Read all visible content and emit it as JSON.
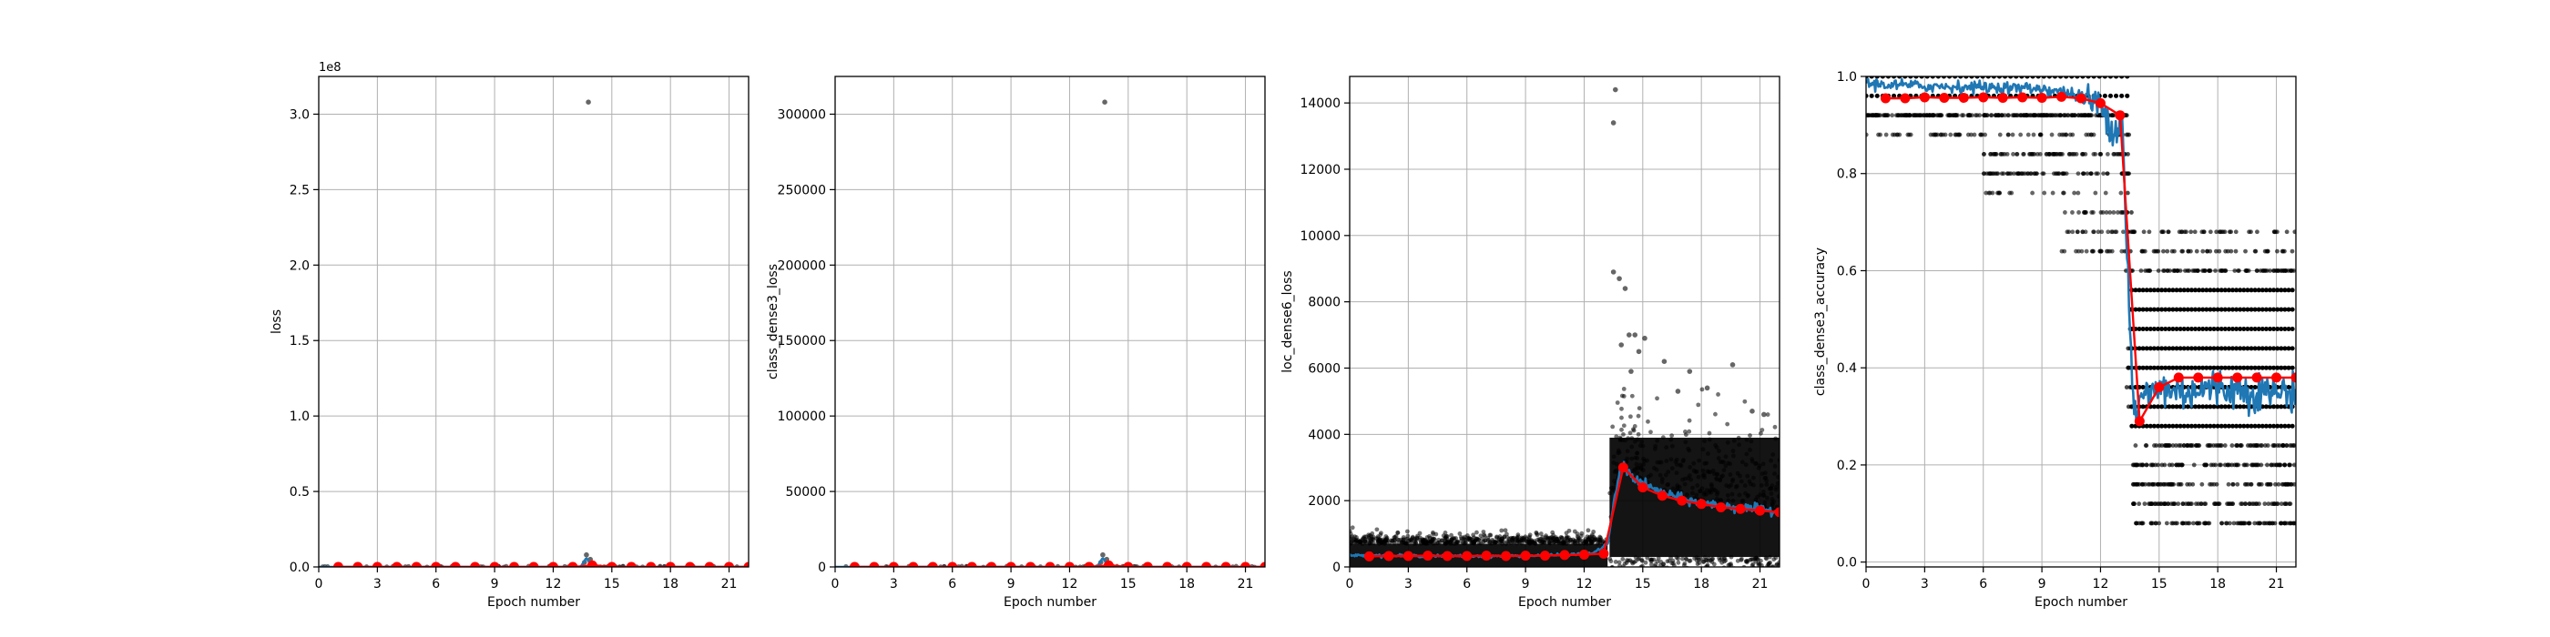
{
  "figure": {
    "background": "#ffffff",
    "colors": {
      "raw": "#000000",
      "smooth": "#1f77b4",
      "epoch_mean": "#ff0000",
      "grid": "#b0b0b0"
    }
  },
  "chart_data": [
    {
      "type": "scatter",
      "ylabel": "loss",
      "xlabel": "Epoch number",
      "offset_label": "1e8",
      "xlim": [
        0,
        22
      ],
      "ylim": [
        0,
        3.25
      ],
      "xticks": [
        0,
        3,
        6,
        9,
        12,
        15,
        18,
        21
      ],
      "yticks": [
        0.0,
        0.5,
        1.0,
        1.5,
        2.0,
        2.5,
        3.0
      ],
      "ytick_labels": [
        "0.0",
        "0.5",
        "1.0",
        "1.5",
        "2.0",
        "2.5",
        "3.0"
      ],
      "grid": true,
      "outliers": [
        [
          13.8,
          3.08
        ],
        [
          13.7,
          0.08
        ],
        [
          13.9,
          0.05
        ],
        [
          13.6,
          0.03
        ]
      ],
      "epoch_means": [
        [
          1,
          0
        ],
        [
          2,
          0
        ],
        [
          3,
          0
        ],
        [
          4,
          0
        ],
        [
          5,
          0
        ],
        [
          6,
          0
        ],
        [
          7,
          0
        ],
        [
          8,
          0
        ],
        [
          9,
          0
        ],
        [
          10,
          0
        ],
        [
          11,
          0
        ],
        [
          12,
          0
        ],
        [
          13,
          0
        ],
        [
          14,
          0.01
        ],
        [
          15,
          0
        ],
        [
          16,
          0
        ],
        [
          17,
          0
        ],
        [
          18,
          0
        ],
        [
          19,
          0
        ],
        [
          20,
          0
        ],
        [
          21,
          0
        ],
        [
          22,
          0
        ]
      ],
      "smooth": [
        [
          0,
          0
        ],
        [
          13.4,
          0
        ],
        [
          13.7,
          0.06
        ],
        [
          13.9,
          0.02
        ],
        [
          14.2,
          0
        ],
        [
          22,
          0
        ]
      ],
      "band": {
        "x0": 0,
        "x1": 22,
        "lo": 0,
        "hi": 0.004
      }
    },
    {
      "type": "scatter",
      "ylabel": "class_dense3_loss",
      "xlabel": "Epoch number",
      "xlim": [
        0,
        22
      ],
      "ylim": [
        0,
        325000
      ],
      "xticks": [
        0,
        3,
        6,
        9,
        12,
        15,
        18,
        21
      ],
      "yticks": [
        0,
        50000,
        100000,
        150000,
        200000,
        250000,
        300000
      ],
      "ytick_labels": [
        "0",
        "50000",
        "100000",
        "150000",
        "200000",
        "250000",
        "300000"
      ],
      "grid": true,
      "outliers": [
        [
          13.8,
          308000
        ],
        [
          13.7,
          8000
        ],
        [
          13.9,
          5000
        ],
        [
          13.6,
          3000
        ]
      ],
      "epoch_means": [
        [
          1,
          0
        ],
        [
          2,
          0
        ],
        [
          3,
          0
        ],
        [
          4,
          0
        ],
        [
          5,
          0
        ],
        [
          6,
          0
        ],
        [
          7,
          0
        ],
        [
          8,
          0
        ],
        [
          9,
          0
        ],
        [
          10,
          0
        ],
        [
          11,
          0
        ],
        [
          12,
          0
        ],
        [
          13,
          0
        ],
        [
          14,
          1000
        ],
        [
          15,
          0
        ],
        [
          16,
          0
        ],
        [
          17,
          0
        ],
        [
          18,
          0
        ],
        [
          19,
          0
        ],
        [
          20,
          0
        ],
        [
          21,
          0
        ],
        [
          22,
          0
        ]
      ],
      "smooth": [
        [
          0,
          0
        ],
        [
          13.4,
          0
        ],
        [
          13.7,
          6000
        ],
        [
          13.9,
          2000
        ],
        [
          14.2,
          0
        ],
        [
          22,
          0
        ]
      ],
      "band": {
        "x0": 0,
        "x1": 22,
        "lo": 0,
        "hi": 400
      }
    },
    {
      "type": "scatter",
      "ylabel": "loc_dense6_loss",
      "xlabel": "Epoch number",
      "xlim": [
        0,
        22
      ],
      "ylim": [
        0,
        14800
      ],
      "xticks": [
        0,
        3,
        6,
        9,
        12,
        15,
        18,
        21
      ],
      "yticks": [
        0,
        2000,
        4000,
        6000,
        8000,
        10000,
        12000,
        14000
      ],
      "ytick_labels": [
        "0",
        "2000",
        "4000",
        "6000",
        "8000",
        "10000",
        "12000",
        "14000"
      ],
      "grid": true,
      "outliers": [
        [
          13.6,
          14400
        ],
        [
          13.5,
          13400
        ],
        [
          13.5,
          8900
        ],
        [
          13.8,
          8700
        ],
        [
          14.1,
          8400
        ],
        [
          14.3,
          7000
        ],
        [
          14.6,
          7000
        ],
        [
          15.1,
          6900
        ],
        [
          13.9,
          6700
        ],
        [
          14.8,
          6500
        ],
        [
          16.1,
          6200
        ],
        [
          19.6,
          6100
        ],
        [
          17.4,
          5900
        ],
        [
          18.3,
          5400
        ],
        [
          21.2,
          4600
        ],
        [
          20.6,
          4700
        ],
        [
          16.8,
          5300
        ],
        [
          14.4,
          5900
        ]
      ],
      "epoch_means": [
        [
          1,
          320
        ],
        [
          2,
          330
        ],
        [
          3,
          330
        ],
        [
          4,
          340
        ],
        [
          5,
          330
        ],
        [
          6,
          330
        ],
        [
          7,
          340
        ],
        [
          8,
          330
        ],
        [
          9,
          340
        ],
        [
          10,
          340
        ],
        [
          11,
          360
        ],
        [
          12,
          370
        ],
        [
          13,
          400
        ],
        [
          14,
          3000
        ],
        [
          15,
          2400
        ],
        [
          16,
          2150
        ],
        [
          17,
          2000
        ],
        [
          18,
          1900
        ],
        [
          19,
          1800
        ],
        [
          20,
          1750
        ],
        [
          21,
          1700
        ],
        [
          22,
          1650
        ]
      ],
      "smooth": [
        [
          0,
          350
        ],
        [
          4,
          330
        ],
        [
          8,
          330
        ],
        [
          11,
          360
        ],
        [
          12.5,
          420
        ],
        [
          13.2,
          700
        ],
        [
          13.6,
          2200
        ],
        [
          13.9,
          3100
        ],
        [
          14.5,
          2700
        ],
        [
          15.5,
          2350
        ],
        [
          17,
          2050
        ],
        [
          18.5,
          1880
        ],
        [
          20,
          1780
        ],
        [
          22,
          1680
        ]
      ],
      "band": {
        "x0": 0,
        "x1": 13.2,
        "lo": 0,
        "hi": 700
      },
      "band2": {
        "x0": 13.3,
        "x1": 22,
        "lo": 300,
        "hi": 3900
      }
    },
    {
      "type": "scatter",
      "ylabel": "class_dense3_accuracy",
      "xlabel": "Epoch number",
      "xlim": [
        0,
        22
      ],
      "ylim": [
        -0.01,
        1.0
      ],
      "xticks": [
        0,
        3,
        6,
        9,
        12,
        15,
        18,
        21
      ],
      "yticks": [
        0.0,
        0.2,
        0.4,
        0.6,
        0.8,
        1.0
      ],
      "ytick_labels": [
        "0.0",
        "0.2",
        "0.4",
        "0.6",
        "0.8",
        "1.0"
      ],
      "grid": true,
      "epoch_means": [
        [
          1,
          0.955
        ],
        [
          2,
          0.955
        ],
        [
          3,
          0.957
        ],
        [
          4,
          0.956
        ],
        [
          5,
          0.956
        ],
        [
          6,
          0.957
        ],
        [
          7,
          0.956
        ],
        [
          8,
          0.957
        ],
        [
          9,
          0.956
        ],
        [
          10,
          0.958
        ],
        [
          11,
          0.955
        ],
        [
          12,
          0.945
        ],
        [
          13,
          0.92
        ],
        [
          14,
          0.29
        ],
        [
          15,
          0.36
        ],
        [
          16,
          0.38
        ],
        [
          17,
          0.38
        ],
        [
          18,
          0.38
        ],
        [
          19,
          0.38
        ],
        [
          20,
          0.38
        ],
        [
          21,
          0.38
        ],
        [
          22,
          0.38
        ]
      ],
      "smooth": [
        [
          0,
          0.985
        ],
        [
          3,
          0.98
        ],
        [
          6,
          0.978
        ],
        [
          9,
          0.975
        ],
        [
          10.5,
          0.965
        ],
        [
          11.5,
          0.95
        ],
        [
          12.3,
          0.93
        ],
        [
          12.7,
          0.88
        ],
        [
          13.1,
          0.92
        ],
        [
          13.4,
          0.6
        ],
        [
          13.7,
          0.3
        ],
        [
          14.2,
          0.34
        ],
        [
          15,
          0.36
        ],
        [
          16,
          0.35
        ],
        [
          18,
          0.36
        ],
        [
          20,
          0.35
        ],
        [
          22,
          0.35
        ]
      ],
      "levels_high": [
        1.0,
        0.96,
        0.92,
        0.88,
        0.84,
        0.8,
        0.76,
        0.72,
        0.68,
        0.64
      ],
      "levels_low": [
        0.68,
        0.64,
        0.6,
        0.56,
        0.52,
        0.48,
        0.44,
        0.4,
        0.36,
        0.32,
        0.28,
        0.24,
        0.2,
        0.16,
        0.12,
        0.08
      ]
    }
  ]
}
